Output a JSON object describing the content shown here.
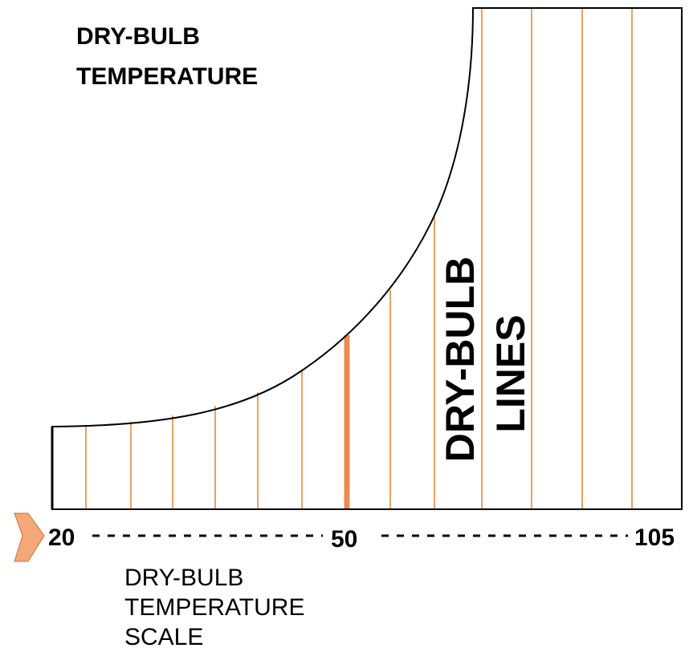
{
  "title": [
    "DRY-BULB",
    "TEMPERATURE"
  ],
  "lines_label": [
    "DRY-BULB",
    "LINES"
  ],
  "scale": {
    "labels": [
      "20",
      "50",
      "105"
    ]
  },
  "caption": [
    "DRY-BULB",
    "TEMPERATURE",
    "SCALE"
  ]
}
